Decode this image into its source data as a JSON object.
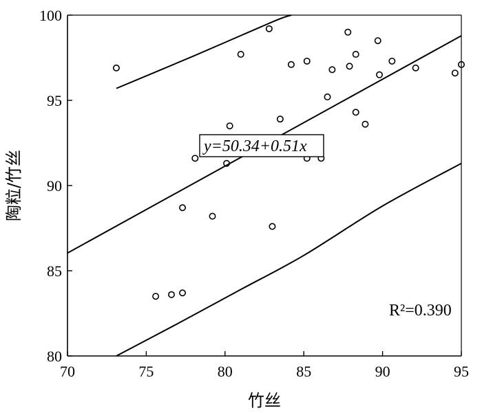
{
  "chart_data": {
    "type": "scatter",
    "xlabel": "竹丝",
    "ylabel": "陶粒/竹丝",
    "xlim": [
      70,
      95
    ],
    "ylim": [
      80,
      100
    ],
    "xticks": [
      70,
      75,
      80,
      85,
      90,
      95
    ],
    "yticks": [
      80,
      85,
      90,
      95,
      100
    ],
    "points": [
      {
        "x": 73.1,
        "y": 96.9
      },
      {
        "x": 75.6,
        "y": 83.5
      },
      {
        "x": 76.6,
        "y": 83.6
      },
      {
        "x": 77.3,
        "y": 83.7
      },
      {
        "x": 77.3,
        "y": 88.7
      },
      {
        "x": 78.1,
        "y": 91.6
      },
      {
        "x": 79.2,
        "y": 88.2
      },
      {
        "x": 80.1,
        "y": 91.3
      },
      {
        "x": 80.3,
        "y": 93.5
      },
      {
        "x": 81.0,
        "y": 97.7
      },
      {
        "x": 82.8,
        "y": 99.2
      },
      {
        "x": 83.0,
        "y": 87.6
      },
      {
        "x": 83.5,
        "y": 93.9
      },
      {
        "x": 84.2,
        "y": 97.1
      },
      {
        "x": 85.2,
        "y": 97.3
      },
      {
        "x": 85.2,
        "y": 91.6
      },
      {
        "x": 86.1,
        "y": 91.6
      },
      {
        "x": 86.5,
        "y": 95.2
      },
      {
        "x": 86.8,
        "y": 96.8
      },
      {
        "x": 87.8,
        "y": 99.0
      },
      {
        "x": 87.9,
        "y": 97.0
      },
      {
        "x": 88.3,
        "y": 97.7
      },
      {
        "x": 88.3,
        "y": 94.3
      },
      {
        "x": 88.9,
        "y": 93.6
      },
      {
        "x": 89.7,
        "y": 98.5
      },
      {
        "x": 89.8,
        "y": 96.5
      },
      {
        "x": 90.6,
        "y": 97.3
      },
      {
        "x": 92.1,
        "y": 96.9
      },
      {
        "x": 94.6,
        "y": 96.6
      },
      {
        "x": 95.0,
        "y": 97.1
      }
    ],
    "fit_line": {
      "intercept": 50.34,
      "slope": 0.51,
      "x_range": [
        70,
        95
      ]
    },
    "upper_band": [
      [
        73.1,
        95.7
      ],
      [
        78,
        97.6
      ],
      [
        83,
        99.6
      ],
      [
        84.2,
        100
      ]
    ],
    "lower_band": [
      [
        73.1,
        80
      ],
      [
        77,
        81.9
      ],
      [
        81,
        83.9
      ],
      [
        85,
        85.9
      ],
      [
        90,
        88.8
      ],
      [
        95,
        91.3
      ]
    ],
    "equation_label": "y=50.34+0.51x",
    "r2_label": "R²=0.390",
    "grid": false
  }
}
